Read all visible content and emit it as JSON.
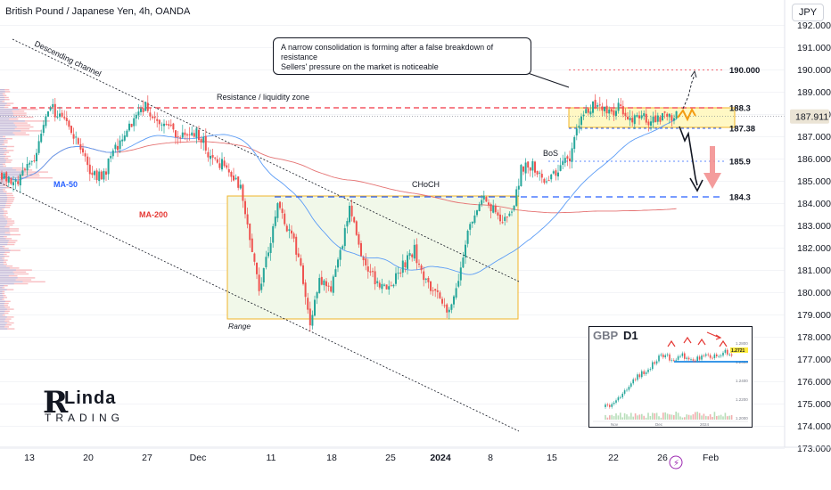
{
  "header": {
    "title": "British Pound / Japanese Yen, 4h, OANDA"
  },
  "currency_button": "JPY",
  "annotation_box": {
    "line1": "A narrow consolidation is forming after a false breakdown of resistance",
    "line2": "Sellers' pressure on the market is noticeable"
  },
  "logo": {
    "letter": "R",
    "word1": "Linda",
    "word2": "TRADING"
  },
  "inset": {
    "symbol": "GBP",
    "timeframe": "D1",
    "price": "1.2721",
    "ticks": [
      "1.2800",
      "1.2600",
      "1.2400",
      "1.2200",
      "1.2000"
    ],
    "xlabels": [
      "Nov",
      "Dec",
      "2024"
    ]
  },
  "colors": {
    "up": "#26a69a",
    "down": "#ef5350",
    "resistance": "#f23645",
    "support": "#2962ff",
    "ma50": "#5b9cf6",
    "ma200": "#e57373",
    "channel": "#131722",
    "range_fill": "#f1f8e9",
    "range_border": "#f0b429"
  },
  "chart_data": {
    "type": "candlestick",
    "title": "British Pound / Japanese Yen, 4h, OANDA",
    "ylim": [
      172.5,
      192.5
    ],
    "y_ticks": [
      "192.000",
      "191.000",
      "190.000",
      "189.000",
      "188.000",
      "187.000",
      "186.000",
      "185.000",
      "184.000",
      "183.000",
      "182.000",
      "181.000",
      "180.000",
      "179.000",
      "178.000",
      "177.000",
      "176.000",
      "175.000",
      "174.000",
      "173.000"
    ],
    "x_ticks": [
      "13",
      "20",
      "27",
      "Dec",
      "11",
      "18",
      "25",
      "2024",
      "8",
      "15",
      "22",
      "26",
      "Feb"
    ],
    "last_price": "187.911",
    "levels": [
      {
        "value": 190.0,
        "label": "190.000"
      },
      {
        "value": 188.3,
        "label": "188.3"
      },
      {
        "value": 187.38,
        "label": "187.38"
      },
      {
        "value": 185.9,
        "label": "185.9"
      },
      {
        "value": 184.3,
        "label": "184.3"
      }
    ],
    "labels": {
      "channel": "Descending channel",
      "resistance": "Resistance / liquidity zone",
      "ma50": "MA-50",
      "ma200": "MA-200",
      "choch": "CHoCH",
      "bos": "BoS",
      "range": "Range"
    },
    "path_anchors": [
      [
        0,
        185.4
      ],
      [
        20,
        185.0
      ],
      [
        40,
        186.0
      ],
      [
        55,
        188.3
      ],
      [
        70,
        187.9
      ],
      [
        85,
        187.0
      ],
      [
        100,
        185.4
      ],
      [
        115,
        185.2
      ],
      [
        130,
        186.5
      ],
      [
        145,
        187.5
      ],
      [
        162,
        188.4
      ],
      [
        175,
        187.9
      ],
      [
        190,
        187.3
      ],
      [
        205,
        187.1
      ],
      [
        222,
        187.2
      ],
      [
        238,
        186.0
      ],
      [
        255,
        185.6
      ],
      [
        270,
        184.8
      ],
      [
        282,
        182.2
      ],
      [
        290,
        180.2
      ],
      [
        300,
        181.6
      ],
      [
        311,
        184.2
      ],
      [
        322,
        183.0
      ],
      [
        335,
        181.6
      ],
      [
        348,
        178.7
      ],
      [
        358,
        180.6
      ],
      [
        372,
        180.3
      ],
      [
        385,
        182.2
      ],
      [
        392,
        184.1
      ],
      [
        405,
        181.6
      ],
      [
        418,
        180.7
      ],
      [
        430,
        180.3
      ],
      [
        442,
        180.6
      ],
      [
        455,
        181.4
      ],
      [
        465,
        181.9
      ],
      [
        472,
        180.8
      ],
      [
        482,
        180.2
      ],
      [
        492,
        179.8
      ],
      [
        505,
        179.2
      ],
      [
        515,
        180.8
      ],
      [
        525,
        182.8
      ],
      [
        535,
        183.9
      ],
      [
        545,
        184.2
      ],
      [
        555,
        183.6
      ],
      [
        565,
        183.2
      ],
      [
        575,
        183.9
      ],
      [
        585,
        185.6
      ],
      [
        598,
        185.7
      ],
      [
        612,
        184.9
      ],
      [
        625,
        185.4
      ],
      [
        640,
        186.2
      ],
      [
        650,
        187.6
      ],
      [
        662,
        188.4
      ],
      [
        672,
        188.6
      ],
      [
        682,
        188.0
      ],
      [
        695,
        188.3
      ],
      [
        708,
        187.9
      ],
      [
        720,
        187.8
      ],
      [
        732,
        187.7
      ],
      [
        745,
        188.0
      ],
      [
        760,
        187.9
      ]
    ],
    "volume_profile": "left-edge histogram"
  }
}
